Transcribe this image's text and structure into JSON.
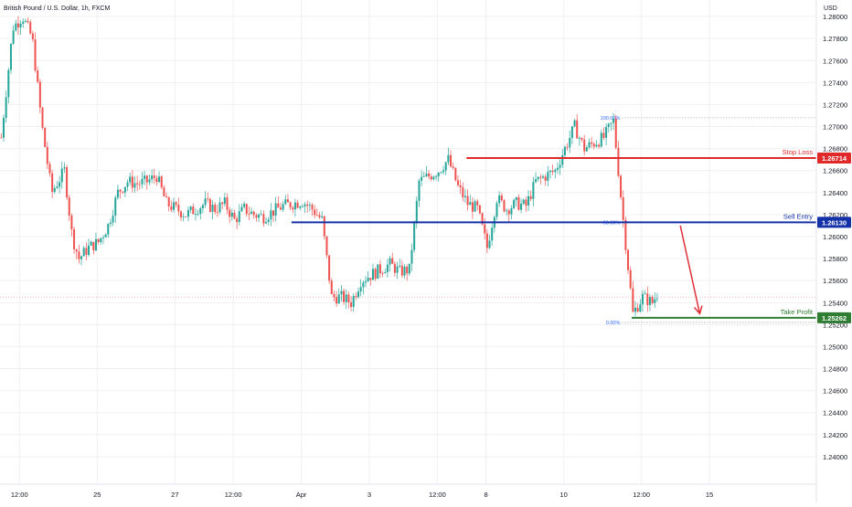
{
  "header": {
    "title": "British Pound / U.S. Dollar, 1h, FXCM",
    "currency": "USD"
  },
  "colors": {
    "up": "#26a69a",
    "down": "#ef5350",
    "grid": "#eef0f3",
    "axis_text": "#131722",
    "stop": "#e02a2a",
    "entry": "#1531a8",
    "target": "#2e7d32",
    "fib": "#2962ff",
    "arrow": "#e0303a",
    "last_price": "#f0a0a0"
  },
  "chart_data": {
    "type": "candlestick",
    "title": "British Pound / U.S. Dollar, 1h, FXCM",
    "ylim": [
      1.2375,
      1.2815
    ],
    "grid": true,
    "y_ticks": [
      "1.28000",
      "1.27800",
      "1.27600",
      "1.27400",
      "1.27200",
      "1.27000",
      "1.26800",
      "1.26600",
      "1.26400",
      "1.26200",
      "1.26000",
      "1.25800",
      "1.25600",
      "1.25400",
      "1.25200",
      "1.25000",
      "1.24800",
      "1.24600",
      "1.24400",
      "1.24200",
      "1.24000"
    ],
    "x_ticks": [
      "12:00",
      "25",
      "27",
      "12:00",
      "Apr",
      "3",
      "12:00",
      "8",
      "10",
      "12:00",
      "15"
    ],
    "x_tick_positions": [
      2,
      10,
      18,
      24,
      31,
      38,
      45,
      50,
      58,
      66,
      73
    ],
    "n_slots": 84,
    "price_path": [
      [
        0,
        1.269
      ],
      [
        1.2,
        1.279
      ],
      [
        2.2,
        1.28
      ],
      [
        3.2,
        1.278
      ],
      [
        4.2,
        1.27
      ],
      [
        5.2,
        1.264
      ],
      [
        6.5,
        1.266
      ],
      [
        7.3,
        1.26
      ],
      [
        8,
        1.258
      ],
      [
        9,
        1.259
      ],
      [
        10,
        1.2595
      ],
      [
        11,
        1.261
      ],
      [
        12,
        1.264
      ],
      [
        13,
        1.265
      ],
      [
        14,
        1.2648
      ],
      [
        15,
        1.265
      ],
      [
        16,
        1.2655
      ],
      [
        17,
        1.263
      ],
      [
        18,
        1.2625
      ],
      [
        19,
        1.262
      ],
      [
        20,
        1.2625
      ],
      [
        21,
        1.263
      ],
      [
        22,
        1.2625
      ],
      [
        23,
        1.263
      ],
      [
        24,
        1.2615
      ],
      [
        25,
        1.2625
      ],
      [
        26,
        1.262
      ],
      [
        27,
        1.2618
      ],
      [
        28,
        1.2623
      ],
      [
        29,
        1.2628
      ],
      [
        30,
        1.263
      ],
      [
        31,
        1.2632
      ],
      [
        32,
        1.2625
      ],
      [
        33,
        1.2615
      ],
      [
        34,
        1.2545
      ],
      [
        35,
        1.2545
      ],
      [
        36,
        1.254
      ],
      [
        37,
        1.256
      ],
      [
        38,
        1.2565
      ],
      [
        39,
        1.257
      ],
      [
        40,
        1.2575
      ],
      [
        41,
        1.2568
      ],
      [
        42,
        1.257
      ],
      [
        43,
        1.265
      ],
      [
        44,
        1.2655
      ],
      [
        45,
        1.266
      ],
      [
        46,
        1.267
      ],
      [
        47,
        1.2645
      ],
      [
        48,
        1.263
      ],
      [
        49,
        1.2625
      ],
      [
        50,
        1.259
      ],
      [
        51,
        1.2635
      ],
      [
        52,
        1.2625
      ],
      [
        53,
        1.263
      ],
      [
        54,
        1.2628
      ],
      [
        55,
        1.265
      ],
      [
        56,
        1.2655
      ],
      [
        57,
        1.266
      ],
      [
        58,
        1.268
      ],
      [
        59,
        1.27
      ],
      [
        60,
        1.268
      ],
      [
        61,
        1.2685
      ],
      [
        62,
        1.269
      ],
      [
        63,
        1.2705
      ],
      [
        64,
        1.2615
      ],
      [
        65,
        1.253
      ],
      [
        66,
        1.2545
      ],
      [
        67,
        1.254
      ],
      [
        67.5,
        1.2548
      ]
    ],
    "fib_levels": [
      {
        "label": "100.00%",
        "price": 1.2708
      },
      {
        "label": "50.00%",
        "price": 1.2613
      },
      {
        "label": "0.00%",
        "price": 1.2522
      }
    ],
    "levels": [
      {
        "name": "Stop Loss",
        "price_label": "1.26714",
        "price": 1.26714,
        "color_key": "stop"
      },
      {
        "name": "Sell Entry",
        "price_label": "1.26130",
        "price": 1.2613,
        "color_key": "entry"
      },
      {
        "name": "Take Profit",
        "price_label": "1.25262",
        "price": 1.25262,
        "color_key": "target"
      }
    ],
    "last_price": 1.2545,
    "arrow": {
      "from": [
        70,
        1.261
      ],
      "to": [
        72,
        1.253
      ]
    }
  }
}
